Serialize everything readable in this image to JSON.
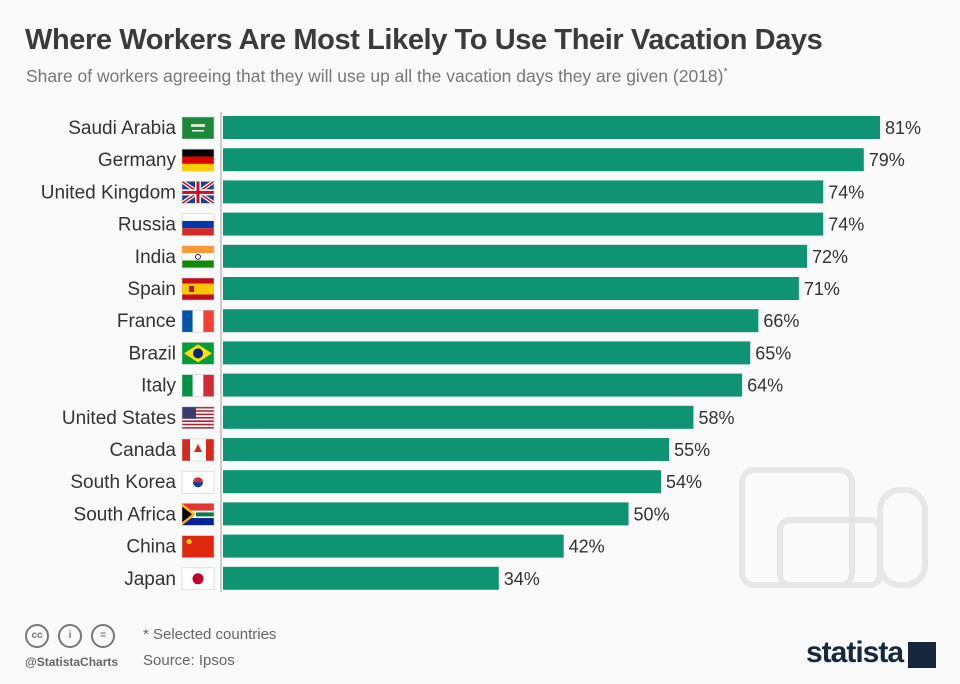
{
  "chart_data": {
    "type": "bar",
    "orientation": "horizontal",
    "title": "Where Workers Are Most Likely To Use Their Vacation Days",
    "subtitle": "Share of workers agreeing that they will use up all the vacation days they are given (2018)",
    "subtitle_mark": "*",
    "categories": [
      "Saudi Arabia",
      "Germany",
      "United Kingdom",
      "Russia",
      "India",
      "Spain",
      "France",
      "Brazil",
      "Italy",
      "United States",
      "Canada",
      "South Korea",
      "South Africa",
      "China",
      "Japan"
    ],
    "values": [
      81,
      79,
      74,
      74,
      72,
      71,
      66,
      65,
      64,
      58,
      55,
      54,
      50,
      42,
      34
    ],
    "value_labels": [
      "81%",
      "79%",
      "74%",
      "74%",
      "72%",
      "71%",
      "66%",
      "65%",
      "64%",
      "58%",
      "55%",
      "54%",
      "50%",
      "42%",
      "34%"
    ],
    "flags": [
      "sa",
      "de",
      "gb",
      "ru",
      "in",
      "es",
      "fr",
      "br",
      "it",
      "us",
      "ca",
      "kr",
      "za",
      "cn",
      "jp"
    ],
    "unit": "%",
    "xlim": [
      0,
      81
    ],
    "grid": false,
    "bar_color": "#0e9473"
  },
  "footer": {
    "note": "* Selected countries",
    "source": "Source: Ipsos",
    "handle": "@StatistaCharts",
    "brand": "statista",
    "license_icons": [
      "cc",
      "by",
      "=",
      "="
    ]
  }
}
